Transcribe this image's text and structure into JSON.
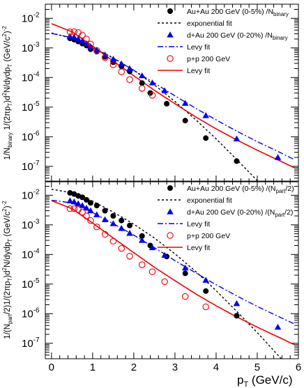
{
  "figure": {
    "x_axis_label_main": "p",
    "x_axis_label_sub": "T",
    "x_axis_label_unit": " (GeV/c)",
    "x_ticks": [
      "0",
      "1",
      "2",
      "3",
      "4",
      "5",
      "6"
    ]
  },
  "chart_data": [
    {
      "type": "scatter",
      "title": "",
      "ylabel": "1/N_binary 1/(2πp_T)d²N/dydp_T (GeV/c²)⁻²",
      "ylabel_parts": [
        "1/N",
        "binary",
        " 1/(2πp",
        "T",
        ")d",
        "2",
        "N/dydp",
        "T",
        " (GeV/c",
        "2",
        ")",
        "-2"
      ],
      "xlim": [
        -0.15,
        6.0
      ],
      "ylim_log": [
        3e-08,
        0.03
      ],
      "y_scale": "log",
      "y_ticks": [
        {
          "label": "10",
          "exp": "-2"
        },
        {
          "label": "10",
          "exp": "-3"
        },
        {
          "label": "10",
          "exp": "-4"
        },
        {
          "label": "10",
          "exp": "-5"
        },
        {
          "label": "10",
          "exp": "-6"
        },
        {
          "label": "10",
          "exp": "-7"
        }
      ],
      "legend_position": "top-right",
      "series": [
        {
          "name": "Au+Au 200 GeV (0-5%) /N",
          "name_sub": "binary",
          "marker": "filled-circle",
          "color": "#000000",
          "x": [
            0.45,
            0.55,
            0.65,
            0.75,
            0.85,
            0.95,
            1.1,
            1.3,
            1.5,
            1.7,
            1.9,
            2.2,
            2.4,
            2.8,
            3.25,
            3.75,
            4.5
          ],
          "y": [
            0.0021,
            0.0019,
            0.00165,
            0.0014,
            0.0012,
            0.0009,
            0.00075,
            0.0005,
            0.00033,
            0.00024,
            0.00016,
            6.5e-05,
            3e-05,
            1.3e-05,
            3.5e-06,
            9e-07,
            1.5e-07
          ]
        },
        {
          "name": "exponential fit",
          "line": "dashed",
          "color": "#000000",
          "fit_x": [
            0.0,
            0.5,
            1.0,
            1.5,
            2.0,
            2.5,
            3.0,
            3.5,
            4.0,
            4.5,
            5.0,
            5.5,
            5.9
          ],
          "fit_y": [
            0.0032,
            0.0021,
            0.00105,
            0.00046,
            0.000175,
            5.6e-05,
            1.55e-05,
            3.8e-06,
            8.5e-07,
            1.7e-07,
            3.3e-08,
            6e-09,
            1.5e-09
          ]
        },
        {
          "name": "d+Au 200 GeV (0-20%) /N",
          "name_sub": "binary",
          "marker": "filled-triangle",
          "color": "#0000ee",
          "x": [
            0.45,
            0.55,
            0.65,
            0.75,
            0.85,
            0.95,
            1.1,
            1.3,
            1.5,
            1.7,
            1.9,
            2.2,
            2.45,
            2.75,
            3.25,
            3.75,
            4.5,
            5.5
          ],
          "y": [
            0.0025,
            0.0023,
            0.002,
            0.0017,
            0.0014,
            0.0011,
            0.00085,
            0.00058,
            0.00042,
            0.00029,
            0.0002,
            0.000115,
            6.6e-05,
            3.6e-05,
            1.35e-05,
            5.2e-06,
            8.5e-07,
            2e-07
          ]
        },
        {
          "name": "Levy fit",
          "line": "dash-dot",
          "color": "#0000ee",
          "fit_x": [
            0.0,
            0.5,
            1.0,
            1.5,
            2.0,
            2.5,
            3.0,
            3.5,
            4.0,
            4.5,
            5.0,
            5.5,
            5.9
          ],
          "fit_y": [
            0.0031,
            0.0022,
            0.00105,
            0.00045,
            0.000175,
            6.5e-05,
            2.4e-05,
            9.2e-06,
            3.7e-06,
            1.55e-06,
            6.8e-07,
            3.2e-07,
            1.7e-07
          ]
        },
        {
          "name": "p+p 200 GeV",
          "marker": "open-circle",
          "color": "#ee0000",
          "x": [
            0.45,
            0.55,
            0.65,
            0.75,
            0.85,
            0.95,
            1.1,
            1.3,
            1.5,
            1.7,
            1.9,
            2.2,
            2.45
          ],
          "y": [
            0.0035,
            0.0035,
            0.0033,
            0.0027,
            0.002,
            0.00135,
            0.00082,
            0.00047,
            0.00027,
            0.000155,
            8.5e-05,
            4.3e-05,
            2.5e-05
          ]
        },
        {
          "name": "Levy fit",
          "line": "solid",
          "color": "#ee0000",
          "fit_x": [
            0.0,
            0.5,
            1.0,
            1.5,
            2.0,
            2.5,
            3.0,
            3.5,
            4.0,
            4.5,
            5.0,
            5.5,
            5.9
          ],
          "fit_y": [
            0.0066,
            0.0035,
            0.00115,
            0.00036,
            0.000115,
            3.7e-05,
            1.3e-05,
            4.7e-06,
            1.85e-06,
            7.8e-07,
            3.5e-07,
            1.65e-07,
            9e-08
          ]
        }
      ]
    },
    {
      "type": "scatter",
      "title": "",
      "ylabel": "1/(N_part/2)1/(2πp_T)d²N/dydp_T (GeV/c²)⁻²",
      "ylabel_parts": [
        "1/(N",
        "part",
        "/2)1/(2πp",
        "T",
        ")d",
        "2",
        "N/dydp",
        "T",
        " (GeV/c",
        "2",
        ")",
        "-2"
      ],
      "xlim": [
        -0.15,
        6.0
      ],
      "ylim_log": [
        3e-08,
        0.03
      ],
      "y_scale": "log",
      "y_ticks": [
        {
          "label": "10",
          "exp": "-2"
        },
        {
          "label": "10",
          "exp": "-3"
        },
        {
          "label": "10",
          "exp": "-4"
        },
        {
          "label": "10",
          "exp": "-5"
        },
        {
          "label": "10",
          "exp": "-6"
        },
        {
          "label": "10",
          "exp": "-7"
        }
      ],
      "legend_position": "top-right",
      "series": [
        {
          "name": "Au+Au 200 GeV (0-5%) /(N",
          "name_sub": "part",
          "name_tail": "/2)",
          "marker": "filled-circle",
          "color": "#000000",
          "x": [
            0.45,
            0.55,
            0.65,
            0.75,
            0.85,
            0.95,
            1.1,
            1.3,
            1.5,
            1.7,
            1.9,
            2.2,
            2.4,
            2.8,
            3.25,
            3.75,
            4.5
          ],
          "y": [
            0.012,
            0.011,
            0.0095,
            0.0085,
            0.007,
            0.0055,
            0.0045,
            0.003,
            0.002,
            0.0014,
            0.00095,
            0.00042,
            0.0002,
            8.5e-05,
            2.3e-05,
            5.8e-06,
            8.5e-07
          ]
        },
        {
          "name": "exponential fit",
          "line": "dashed",
          "color": "#000000",
          "fit_x": [
            0.0,
            0.5,
            1.0,
            1.5,
            2.0,
            2.5,
            3.0,
            3.5,
            4.0,
            4.5,
            5.0,
            5.5,
            5.9
          ],
          "fit_y": [
            0.016,
            0.012,
            0.0063,
            0.0027,
            0.00105,
            0.00036,
            0.000105,
            2.7e-05,
            6e-06,
            1.2e-06,
            2.3e-07,
            4e-08,
            1e-08
          ]
        },
        {
          "name": "d+Au 200 GeV (0-20%) /(N",
          "name_sub": "part",
          "name_tail": "/2)",
          "marker": "filled-triangle",
          "color": "#0000ee",
          "x": [
            0.45,
            0.55,
            0.65,
            0.75,
            0.85,
            0.95,
            1.1,
            1.3,
            1.5,
            1.7,
            1.9,
            2.2,
            2.45,
            2.75,
            3.25,
            3.75,
            4.5,
            5.5
          ],
          "y": [
            0.0065,
            0.006,
            0.0052,
            0.0045,
            0.0037,
            0.003,
            0.0022,
            0.0015,
            0.0011,
            0.00076,
            0.00052,
            0.0003,
            0.00017,
            9.4e-05,
            3.5e-05,
            1.35e-05,
            2.2e-06,
            3.5e-07
          ]
        },
        {
          "name": "Levy fit",
          "line": "dash-dot",
          "color": "#0000ee",
          "fit_x": [
            0.0,
            0.5,
            1.0,
            1.5,
            2.0,
            2.5,
            3.0,
            3.5,
            4.0,
            4.5,
            5.0,
            5.5,
            5.9
          ],
          "fit_y": [
            0.0068,
            0.0055,
            0.0026,
            0.0011,
            0.00045,
            0.00017,
            6.2e-05,
            2.4e-05,
            9.5e-06,
            4e-06,
            1.75e-06,
            8.2e-07,
            4.5e-07
          ]
        },
        {
          "name": "p+p 200 GeV",
          "marker": "open-circle",
          "color": "#ee0000",
          "x": [
            0.45,
            0.55,
            0.65,
            0.75,
            0.85,
            0.95,
            1.1,
            1.3,
            1.5,
            1.7,
            1.9,
            2.2,
            2.45,
            2.75,
            3.25,
            3.75
          ],
          "y": [
            0.0035,
            0.0035,
            0.0033,
            0.0027,
            0.002,
            0.0014,
            0.00085,
            0.00048,
            0.00028,
            0.00016,
            8.7e-05,
            4.5e-05,
            2.6e-05,
            1.2e-05,
            3.8e-06,
            1.7e-06
          ]
        },
        {
          "name": "Levy fit",
          "line": "solid",
          "color": "#ee0000",
          "fit_x": [
            0.0,
            0.5,
            1.0,
            1.5,
            2.0,
            2.5,
            3.0,
            3.5,
            4.0,
            4.5,
            5.0,
            5.5,
            5.9
          ],
          "fit_y": [
            0.0066,
            0.0035,
            0.00115,
            0.00036,
            0.000115,
            3.7e-05,
            1.3e-05,
            4.7e-06,
            1.85e-06,
            7.8e-07,
            3.5e-07,
            1.65e-07,
            9e-08
          ]
        }
      ]
    }
  ]
}
